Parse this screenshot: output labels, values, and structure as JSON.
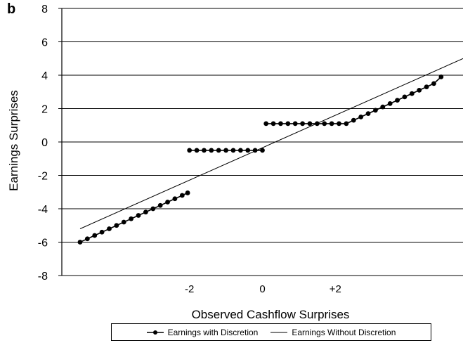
{
  "panel_label": "b",
  "chart_data": {
    "type": "line",
    "xlabel": "Observed Cashflow Surprises",
    "ylabel": "Earnings Surprises",
    "xlim": [
      -5.5,
      5.5
    ],
    "ylim": [
      -8,
      8
    ],
    "xticks": [
      {
        "value": -2,
        "label": "-2"
      },
      {
        "value": 0,
        "label": "0"
      },
      {
        "value": 2,
        "label": "+2"
      }
    ],
    "yticks": [
      -8,
      -6,
      -4,
      -2,
      0,
      2,
      4,
      6,
      8
    ],
    "grid": "horizontal",
    "legend_position": "bottom",
    "series": [
      {
        "name": "Earnings with Discretion",
        "style": "line-with-markers",
        "color": "#000000",
        "segments": [
          {
            "x": [
              -5.0,
              -4.8,
              -4.6,
              -4.4,
              -4.2,
              -4.0,
              -3.8,
              -3.6,
              -3.4,
              -3.2,
              -3.0,
              -2.8,
              -2.6,
              -2.4,
              -2.2,
              -2.05
            ],
            "y": [
              -6.0,
              -5.8,
              -5.6,
              -5.4,
              -5.2,
              -5.0,
              -4.8,
              -4.6,
              -4.4,
              -4.2,
              -4.0,
              -3.8,
              -3.6,
              -3.4,
              -3.2,
              -3.05
            ]
          },
          {
            "x": [
              -2.0,
              -1.8,
              -1.6,
              -1.4,
              -1.2,
              -1.0,
              -0.8,
              -0.6,
              -0.4,
              -0.2,
              0.0
            ],
            "y": [
              -0.5,
              -0.5,
              -0.5,
              -0.5,
              -0.5,
              -0.5,
              -0.5,
              -0.5,
              -0.5,
              -0.5,
              -0.5
            ]
          },
          {
            "x": [
              0.1,
              0.3,
              0.5,
              0.7,
              0.9,
              1.1,
              1.3,
              1.5,
              1.7,
              1.9,
              2.1,
              2.3,
              2.5,
              2.7,
              2.9,
              3.1,
              3.3,
              3.5,
              3.7,
              3.9,
              4.1,
              4.3,
              4.5,
              4.7,
              4.9
            ],
            "y": [
              1.1,
              1.1,
              1.1,
              1.1,
              1.1,
              1.1,
              1.1,
              1.1,
              1.1,
              1.1,
              1.1,
              1.1,
              1.3,
              1.5,
              1.7,
              1.9,
              2.1,
              2.3,
              2.5,
              2.7,
              2.9,
              3.1,
              3.3,
              3.5,
              3.9
            ]
          }
        ]
      },
      {
        "name": "Earnings Without Discretion",
        "style": "line",
        "color": "#000000",
        "segments": [
          {
            "x": [
              -5.0,
              5.5
            ],
            "y": [
              -5.2,
              5.0
            ]
          }
        ]
      }
    ]
  }
}
